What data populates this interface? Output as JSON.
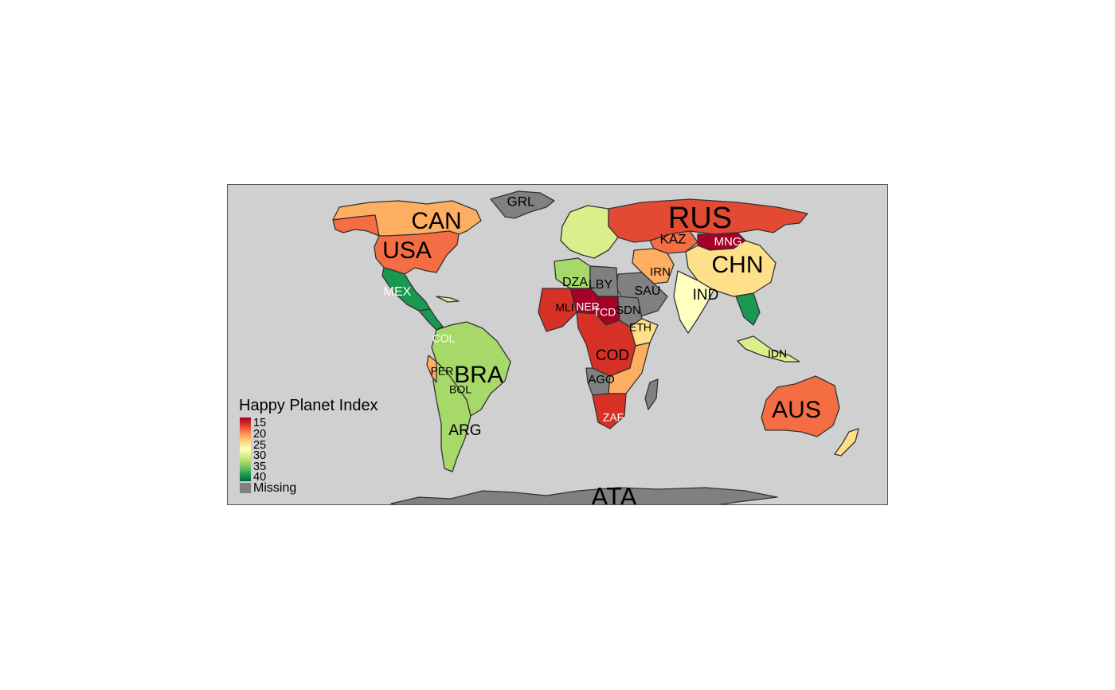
{
  "legend": {
    "title": "Happy Planet Index",
    "ticks": [
      "15",
      "20",
      "25",
      "30",
      "35",
      "40"
    ],
    "missing_label": "Missing",
    "colors": [
      "#a50026",
      "#d73027",
      "#f46d43",
      "#fdae61",
      "#fee08b",
      "#ffffbf",
      "#d9ef8b",
      "#a6d96a",
      "#66bd63",
      "#1a9850",
      "#006837"
    ],
    "missing_color": "#808080",
    "background_color": "#d0d0d0",
    "border_color": "#333333"
  },
  "labels": [
    {
      "code": "GRL",
      "color": "#000000"
    },
    {
      "code": "CAN",
      "color": "#000000"
    },
    {
      "code": "USA",
      "color": "#000000"
    },
    {
      "code": "RUS",
      "color": "#000000"
    },
    {
      "code": "KAZ",
      "color": "#000000"
    },
    {
      "code": "MNG",
      "color": "#ffffff"
    },
    {
      "code": "CHN",
      "color": "#000000"
    },
    {
      "code": "IRN",
      "color": "#000000"
    },
    {
      "code": "DZA",
      "color": "#000000"
    },
    {
      "code": "LBY",
      "color": "#000000"
    },
    {
      "code": "SAU",
      "color": "#000000"
    },
    {
      "code": "IND",
      "color": "#000000"
    },
    {
      "code": "MEX",
      "color": "#ffffff"
    },
    {
      "code": "MLI",
      "color": "#000000"
    },
    {
      "code": "NER",
      "color": "#ffffff"
    },
    {
      "code": "TCD",
      "color": "#ffffff"
    },
    {
      "code": "SDN",
      "color": "#000000"
    },
    {
      "code": "ETH",
      "color": "#000000"
    },
    {
      "code": "COL",
      "color": "#ffffff"
    },
    {
      "code": "COD",
      "color": "#000000"
    },
    {
      "code": "IDN",
      "color": "#000000"
    },
    {
      "code": "PER",
      "color": "#000000"
    },
    {
      "code": "BRA",
      "color": "#000000"
    },
    {
      "code": "BOL",
      "color": "#000000"
    },
    {
      "code": "AGO",
      "color": "#000000"
    },
    {
      "code": "AUS",
      "color": "#000000"
    },
    {
      "code": "ZAF",
      "color": "#ffffff"
    },
    {
      "code": "ARG",
      "color": "#000000"
    },
    {
      "code": "ATA",
      "color": "#000000"
    }
  ],
  "countries": [
    {
      "code": "GRL",
      "fill": "#808080"
    },
    {
      "code": "CAN",
      "fill": "#fdae61"
    },
    {
      "code": "USA",
      "fill": "#f46d43"
    },
    {
      "code": "MEX",
      "fill": "#1a9850"
    },
    {
      "code": "RUS",
      "fill": "#e34a33"
    },
    {
      "code": "KAZ",
      "fill": "#f46d43"
    },
    {
      "code": "MNG",
      "fill": "#a50026"
    },
    {
      "code": "CHN",
      "fill": "#fee08b"
    },
    {
      "code": "IND",
      "fill": "#ffffbf"
    },
    {
      "code": "IRN",
      "fill": "#fdae61"
    },
    {
      "code": "SAU",
      "fill": "#808080"
    },
    {
      "code": "DZA",
      "fill": "#a6d96a"
    },
    {
      "code": "LBY",
      "fill": "#808080"
    },
    {
      "code": "MLI",
      "fill": "#d73027"
    },
    {
      "code": "NER",
      "fill": "#a50026"
    },
    {
      "code": "TCD",
      "fill": "#a50026"
    },
    {
      "code": "SDN",
      "fill": "#808080"
    },
    {
      "code": "ETH",
      "fill": "#fee08b"
    },
    {
      "code": "COD",
      "fill": "#d73027"
    },
    {
      "code": "AGO",
      "fill": "#808080"
    },
    {
      "code": "ZAF",
      "fill": "#d73027"
    },
    {
      "code": "BRA",
      "fill": "#a6d96a"
    },
    {
      "code": "ARG",
      "fill": "#a6d96a"
    },
    {
      "code": "AUS",
      "fill": "#f46d43"
    },
    {
      "code": "IDN",
      "fill": "#d9ef8b"
    },
    {
      "code": "ATA",
      "fill": "#808080"
    }
  ]
}
